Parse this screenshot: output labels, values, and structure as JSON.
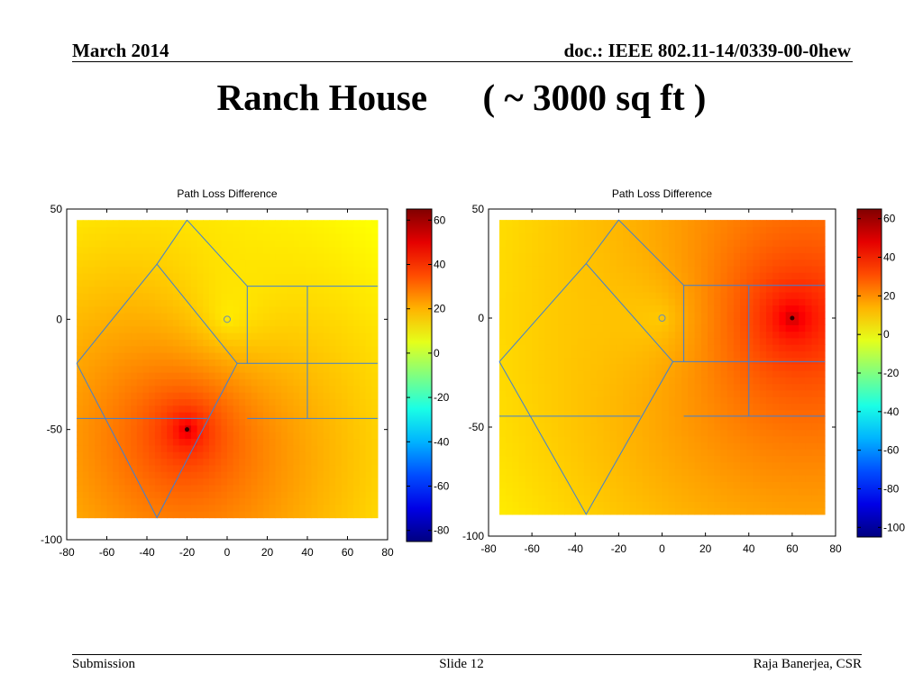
{
  "header": {
    "date": "March 2014",
    "doc_id": "doc.: IEEE 802.11-14/0339-00-0hew"
  },
  "slide_title": "Ranch House      ( ~ 3000 sq ft )",
  "footer": {
    "left": "Submission",
    "center": "Slide 12",
    "right": "Raja Banerjea, CSR"
  },
  "chart_data": [
    {
      "type": "heatmap",
      "title": "Path Loss Difference",
      "xlabel": "",
      "ylabel": "",
      "xlim": [
        -80,
        80
      ],
      "ylim": [
        -100,
        50
      ],
      "xticks": [
        -80,
        -60,
        -40,
        -20,
        0,
        20,
        40,
        60,
        80
      ],
      "yticks": [
        50,
        0,
        -50,
        -100
      ],
      "data_extent": {
        "x": [
          -75,
          75
        ],
        "y": [
          -90,
          45
        ]
      },
      "source_marker": [
        -20,
        -50
      ],
      "reference_marker": [
        0,
        0
      ],
      "peak_value": 60,
      "colorbar": {
        "range": [
          -85,
          65
        ],
        "ticks": [
          60,
          40,
          20,
          0,
          -20,
          -40,
          -60,
          -80
        ],
        "colormap": "jet"
      },
      "colors": {
        "frame": "#000000",
        "walls": "#3d7fd6"
      }
    },
    {
      "type": "heatmap",
      "title": "Path Loss Difference",
      "xlabel": "",
      "ylabel": "",
      "xlim": [
        -80,
        80
      ],
      "ylim": [
        -100,
        50
      ],
      "xticks": [
        -80,
        -60,
        -40,
        -20,
        0,
        20,
        40,
        60,
        80
      ],
      "yticks": [
        50,
        0,
        -50,
        -100
      ],
      "data_extent": {
        "x": [
          -75,
          75
        ],
        "y": [
          -90,
          45
        ]
      },
      "source_marker": [
        60,
        0
      ],
      "reference_marker": [
        0,
        0
      ],
      "peak_value": 60,
      "colorbar": {
        "range": [
          -105,
          65
        ],
        "ticks": [
          60,
          40,
          20,
          0,
          -20,
          -40,
          -60,
          -80,
          -100
        ],
        "colormap": "jet"
      },
      "colors": {
        "frame": "#000000",
        "walls": "#3d7fd6"
      }
    }
  ]
}
